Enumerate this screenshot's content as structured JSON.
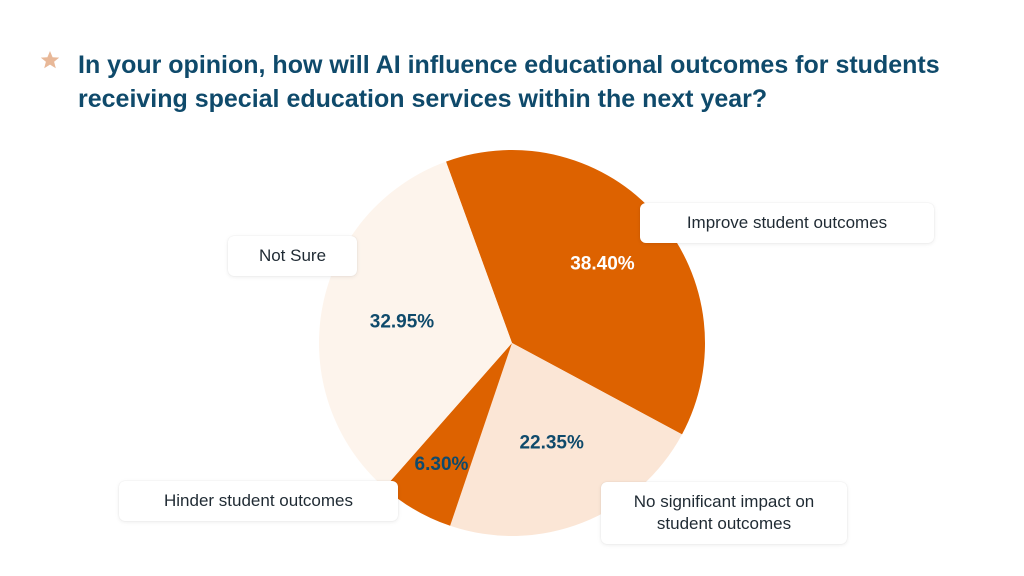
{
  "header": {
    "icon": "star-icon",
    "icon_color": "#e8b898",
    "title": "In your opinion, how will AI influence educational outcomes for students receiving special education services within the next year?"
  },
  "colors": {
    "title": "#0f4a6b",
    "accent": "#dd6200",
    "light": "#fdf4ec",
    "lighter": "#fbe6d6",
    "pct_dark": "#0f4a6b",
    "pct_light": "#ffffff"
  },
  "chart_data": {
    "type": "pie",
    "title": "In your opinion, how will AI influence educational outcomes for students receiving special education services within the next year?",
    "slices": [
      {
        "label": "Improve student outcomes",
        "value": 38.4,
        "display": "38.40%",
        "color": "#dd6200",
        "text_color": "#ffffff"
      },
      {
        "label": "No significant impact on student outcomes",
        "value": 22.35,
        "display": "22.35%",
        "color": "#fbe6d6",
        "text_color": "#0f4a6b"
      },
      {
        "label": "Hinder student outcomes",
        "value": 6.3,
        "display": "6.30%",
        "color": "#dd6200",
        "text_color": "#0f4a6b"
      },
      {
        "label": "Not Sure",
        "value": 32.95,
        "display": "32.95%",
        "color": "#fdf4ec",
        "text_color": "#0f4a6b"
      }
    ],
    "start": "approximately twelve o'clock",
    "direction": "clockwise",
    "legend": "callout boxes beside slices"
  }
}
